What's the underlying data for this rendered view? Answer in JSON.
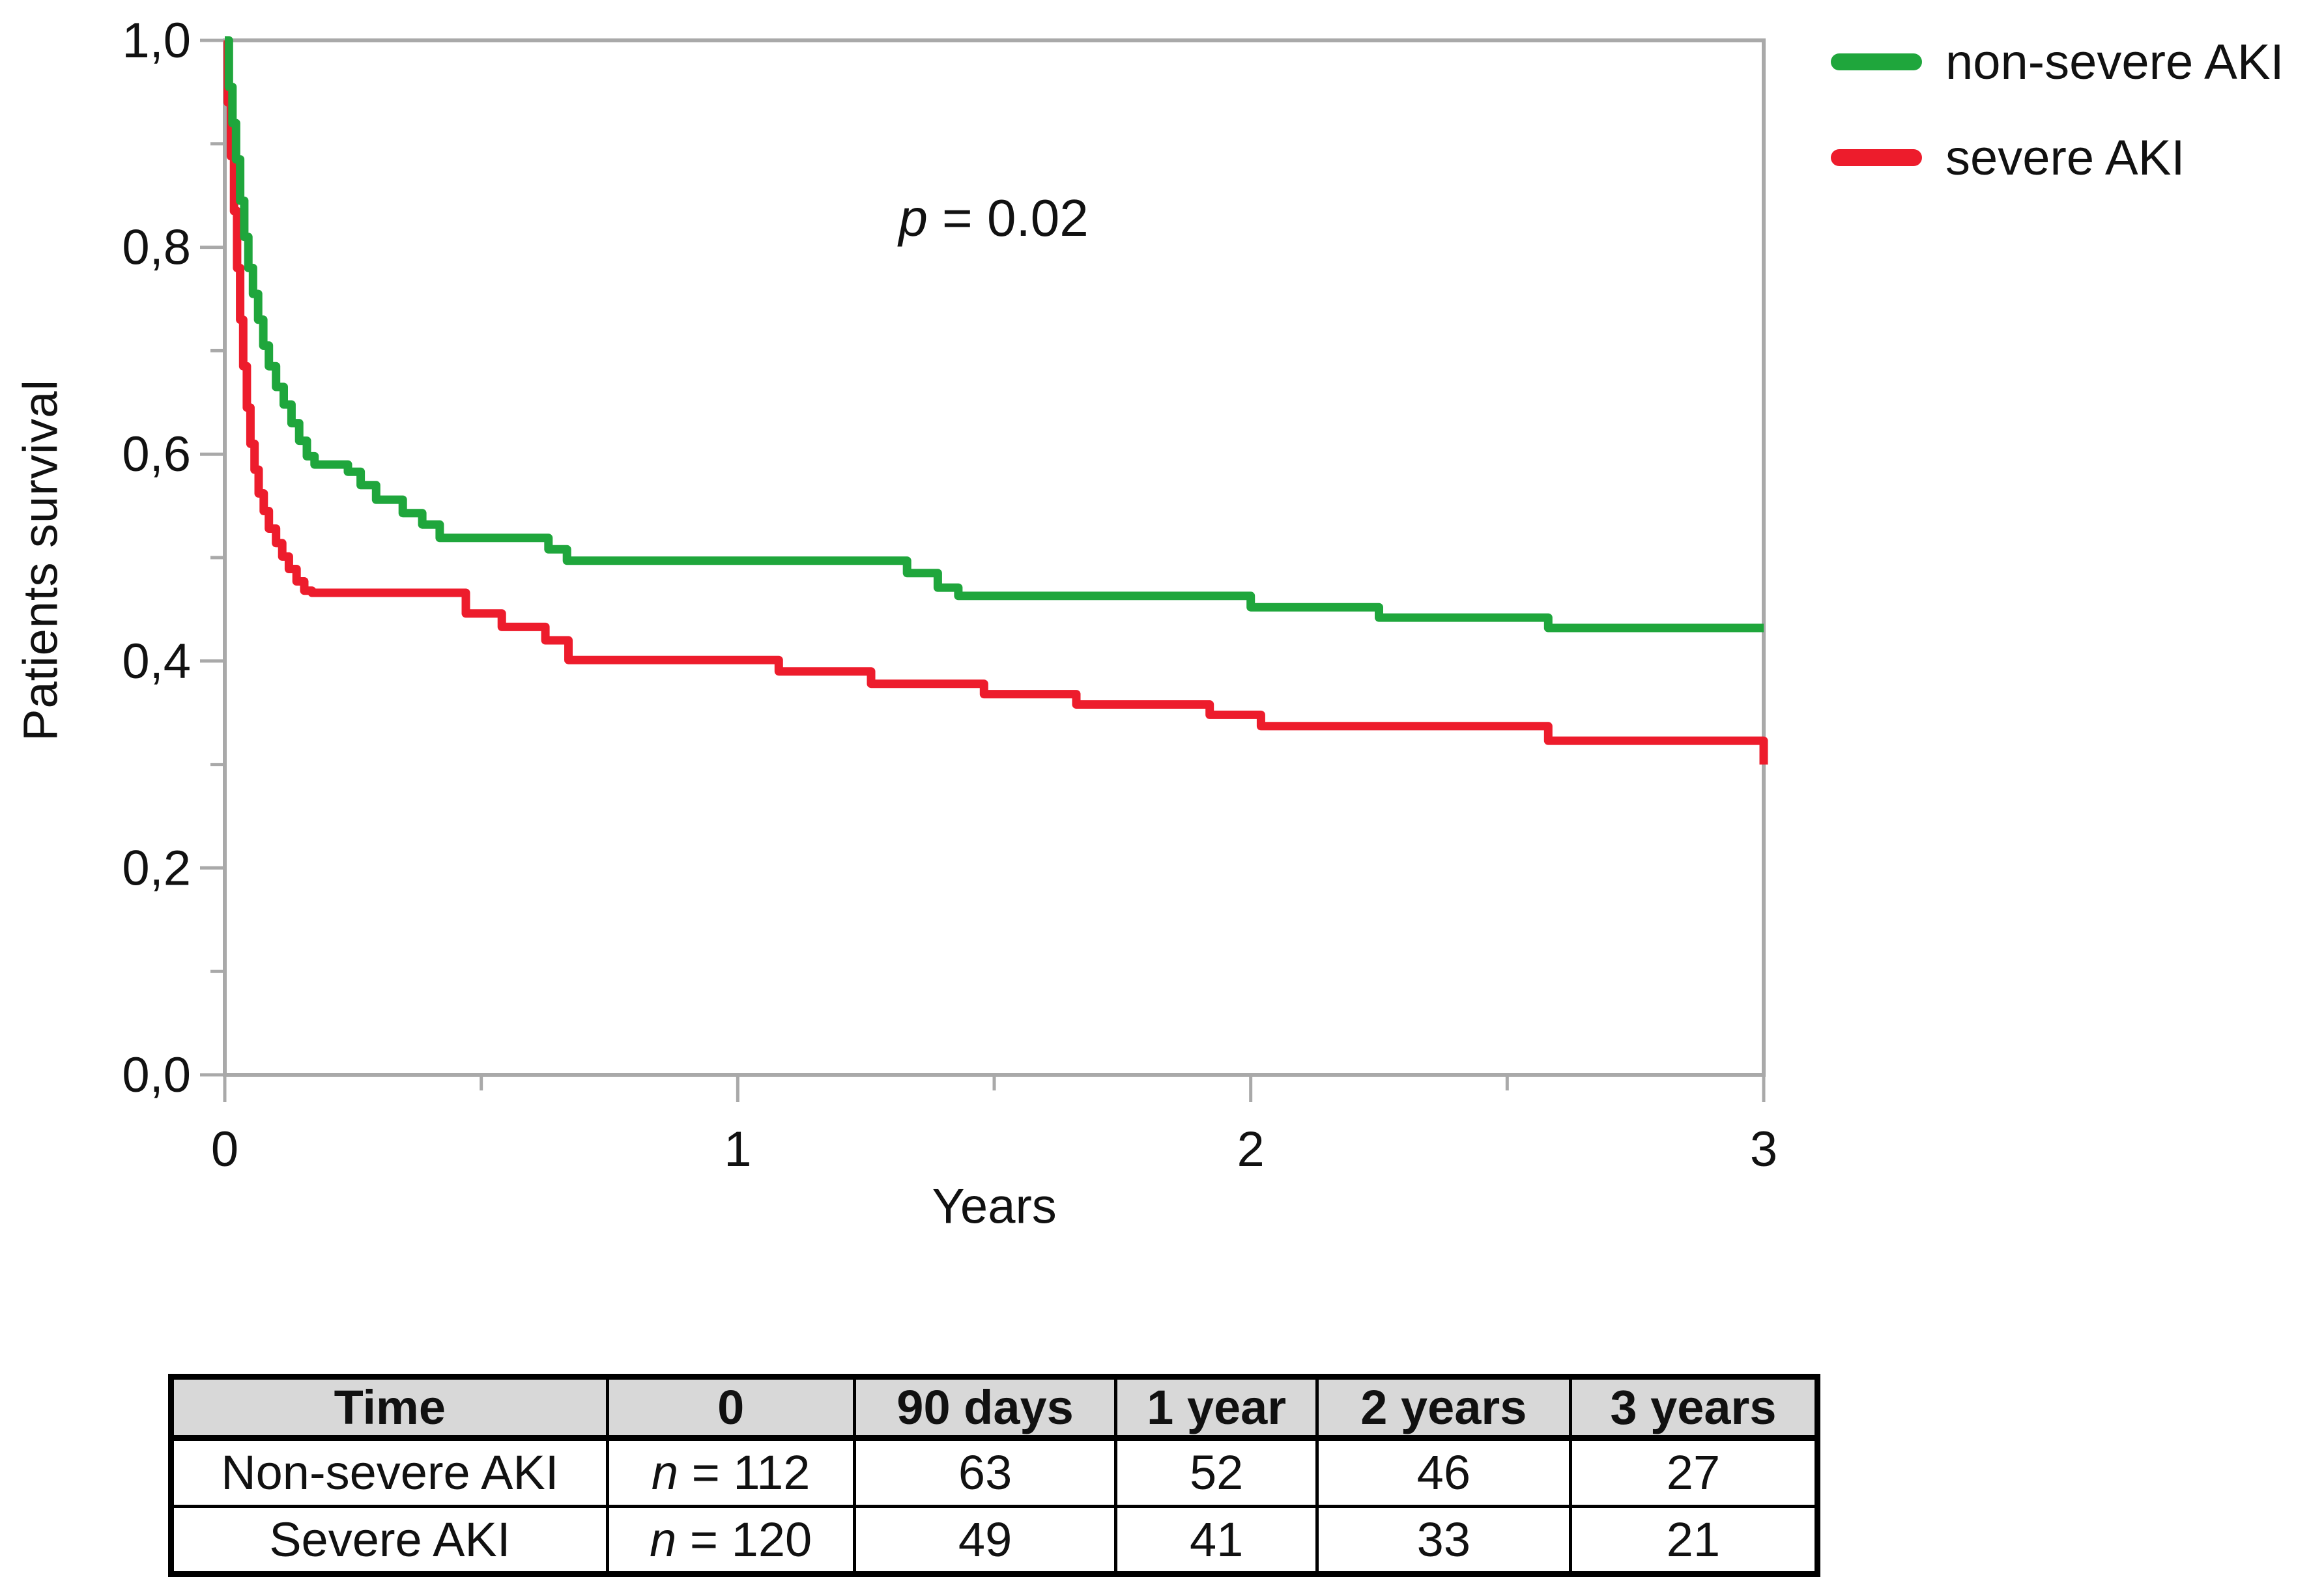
{
  "figure": {
    "p_annotation": {
      "italic": "p",
      "rest": " = 0.02"
    },
    "legend": [
      {
        "label": "non-severe AKI",
        "color": "#1fa63c"
      },
      {
        "label": "severe AKI",
        "color": "#ed1c2c"
      }
    ]
  },
  "chart_data": {
    "type": "line",
    "subtype": "kaplan-meier-step",
    "title": "",
    "xlabel": "Years",
    "ylabel": "Patients survival",
    "annotation": "p = 0.02",
    "legend_position": "top-right",
    "grid": false,
    "xlim": [
      0,
      3
    ],
    "ylim": [
      0,
      1
    ],
    "x_ticks": {
      "values": [
        0,
        1,
        2,
        3
      ],
      "labels": [
        "0",
        "1",
        "2",
        "3"
      ],
      "minor": [
        0.5,
        1.5,
        2.5
      ]
    },
    "y_ticks": {
      "values": [
        0,
        0.2,
        0.4,
        0.6,
        0.8,
        1.0
      ],
      "labels": [
        "0,0",
        "0,2",
        "0,4",
        "0,6",
        "0,8",
        "1,0"
      ],
      "minor": [
        0.1,
        0.3,
        0.5,
        0.7,
        0.9
      ]
    },
    "series": [
      {
        "name": "severe AKI",
        "color": "#ed1c2c",
        "steps": [
          [
            0,
            1.0
          ],
          [
            0.006,
            0.94
          ],
          [
            0.012,
            0.888
          ],
          [
            0.018,
            0.835
          ],
          [
            0.024,
            0.78
          ],
          [
            0.03,
            0.73
          ],
          [
            0.036,
            0.685
          ],
          [
            0.043,
            0.645
          ],
          [
            0.05,
            0.61
          ],
          [
            0.058,
            0.585
          ],
          [
            0.066,
            0.562
          ],
          [
            0.076,
            0.545
          ],
          [
            0.086,
            0.528
          ],
          [
            0.1,
            0.514
          ],
          [
            0.112,
            0.501
          ],
          [
            0.125,
            0.489
          ],
          [
            0.14,
            0.477
          ],
          [
            0.155,
            0.468
          ],
          [
            0.17,
            0.466
          ],
          [
            0.47,
            0.446
          ],
          [
            0.54,
            0.433
          ],
          [
            0.625,
            0.42
          ],
          [
            0.67,
            0.401
          ],
          [
            1.08,
            0.39
          ],
          [
            1.26,
            0.378
          ],
          [
            1.48,
            0.368
          ],
          [
            1.66,
            0.358
          ],
          [
            1.92,
            0.348
          ],
          [
            2.02,
            0.337
          ],
          [
            2.58,
            0.323
          ],
          [
            3.0,
            0.3
          ]
        ]
      },
      {
        "name": "non-severe AKI",
        "color": "#1fa63c",
        "steps": [
          [
            0,
            1.0
          ],
          [
            0.008,
            0.955
          ],
          [
            0.015,
            0.92
          ],
          [
            0.022,
            0.885
          ],
          [
            0.03,
            0.845
          ],
          [
            0.038,
            0.81
          ],
          [
            0.046,
            0.78
          ],
          [
            0.055,
            0.755
          ],
          [
            0.065,
            0.73
          ],
          [
            0.075,
            0.705
          ],
          [
            0.086,
            0.685
          ],
          [
            0.1,
            0.665
          ],
          [
            0.115,
            0.648
          ],
          [
            0.13,
            0.63
          ],
          [
            0.145,
            0.613
          ],
          [
            0.16,
            0.598
          ],
          [
            0.175,
            0.59
          ],
          [
            0.24,
            0.583
          ],
          [
            0.265,
            0.57
          ],
          [
            0.295,
            0.556
          ],
          [
            0.347,
            0.543
          ],
          [
            0.385,
            0.532
          ],
          [
            0.419,
            0.519
          ],
          [
            0.631,
            0.508
          ],
          [
            0.667,
            0.497
          ],
          [
            1.33,
            0.485
          ],
          [
            1.39,
            0.471
          ],
          [
            1.43,
            0.463
          ],
          [
            2.0,
            0.452
          ],
          [
            2.25,
            0.442
          ],
          [
            2.58,
            0.432
          ],
          [
            3.0,
            0.432
          ]
        ]
      }
    ]
  },
  "risk_table": {
    "headers": [
      "Time",
      "0",
      "90 days",
      "1 year",
      "2 years",
      "3 years"
    ],
    "rows": [
      {
        "label": "Non-severe AKI",
        "n_italic": "n",
        "n_rest": " = 112",
        "counts": [
          "63",
          "52",
          "46",
          "27"
        ]
      },
      {
        "label": "Severe AKI",
        "n_italic": "n",
        "n_rest": " = 120",
        "counts": [
          "49",
          "41",
          "33",
          "21"
        ]
      }
    ]
  },
  "colors": {
    "axis": "#a9a9a9",
    "table_header_bg": "#d8d8d8",
    "text": "#111111"
  }
}
